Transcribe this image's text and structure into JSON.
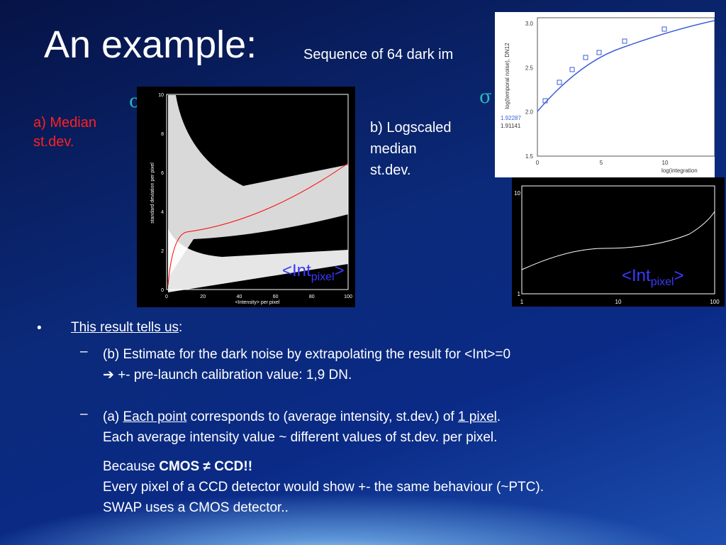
{
  "title": "An example:",
  "subtitle": "Sequence of 64 dark im",
  "sigma": "σ",
  "label_a": [
    "a) Median",
    "st.dev."
  ],
  "label_b": [
    "b) Logscaled",
    "median",
    "st.dev."
  ],
  "plot_a": {
    "yticks": [
      "0",
      "2",
      "4",
      "6",
      "8",
      "10"
    ],
    "xticks": [
      "0",
      "20",
      "40",
      "60",
      "80",
      "100"
    ],
    "ylabel": "standard deviation per pixel",
    "xlabel": "<Intensity> per pixel",
    "int_label": [
      "<Int",
      "pixel",
      ">"
    ]
  },
  "plot_b": {
    "yticks": [
      "1",
      "10"
    ],
    "xticks": [
      "1",
      "10",
      "100"
    ],
    "int_label": [
      "<Int",
      "pixel",
      ">"
    ]
  },
  "inset": {
    "yticks": [
      "1.5",
      "2.0",
      "2.5",
      "3.0"
    ],
    "xticks": [
      "0",
      "5",
      "10"
    ],
    "ylabel": "log(temporal noise), DN12",
    "xlabel": "log(integration",
    "annotations": [
      "1.92287",
      "1.91141"
    ]
  },
  "bullet": {
    "heading": [
      "This result tells us",
      ":"
    ],
    "item1": [
      "(b) Estimate for the dark noise by extrapolating the result for <Int>=0",
      "➔ +- pre-launch calibration value: 1,9 DN."
    ],
    "item2": [
      "(a) ",
      "Each point",
      " corresponds to (average intensity, st.dev.) of ",
      "1 pixel",
      ".",
      "Each average intensity value ~ different values of st.dev. per pixel."
    ],
    "note": [
      "Because ",
      "CMOS ≠ CCD!!",
      "Every pixel of a CCD detector would show +- the same behaviour (~PTC).",
      "SWAP uses a CMOS detector.."
    ]
  }
}
